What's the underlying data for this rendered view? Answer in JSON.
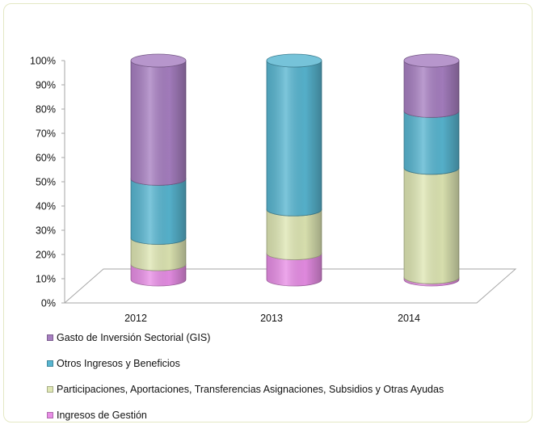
{
  "chart_data": {
    "type": "bar",
    "stacked": true,
    "percent": true,
    "three_d": true,
    "bar_shape": "cylinder",
    "categories": [
      "2012",
      "2013",
      "2014"
    ],
    "y_ticks": [
      "0%",
      "10%",
      "20%",
      "30%",
      "40%",
      "50%",
      "60%",
      "70%",
      "80%",
      "90%",
      "100%"
    ],
    "ylim": [
      0,
      100
    ],
    "grid": false,
    "legend_position": "bottom-left",
    "series": [
      {
        "name": "Ingresos de Gestión",
        "color": "#e88ee6",
        "values": [
          7,
          12,
          1
        ]
      },
      {
        "name": "Participaciones, Aportaciones, Transferencias Asignaciones, Subsidios y Otras Ayudas",
        "color": "#dfe7b4",
        "values": [
          12,
          20,
          50
        ]
      },
      {
        "name": "Otros Ingresos y Beneficios",
        "color": "#58b6d1",
        "values": [
          27,
          68,
          26
        ]
      },
      {
        "name": "Gasto de Inversión Sectorial (GIS)",
        "color": "#a77fc1",
        "values": [
          54,
          0,
          23
        ]
      }
    ]
  },
  "legend": [
    {
      "label": "Gasto de Inversión Sectorial (GIS)",
      "color": "#a77fc1"
    },
    {
      "label": "Otros Ingresos y Beneficios",
      "color": "#58b6d1"
    },
    {
      "label": "Participaciones, Aportaciones, Transferencias Asignaciones, Subsidios y Otras Ayudas",
      "color": "#dfe7b4"
    },
    {
      "label": "Ingresos de Gestión",
      "color": "#e88ee6"
    }
  ]
}
